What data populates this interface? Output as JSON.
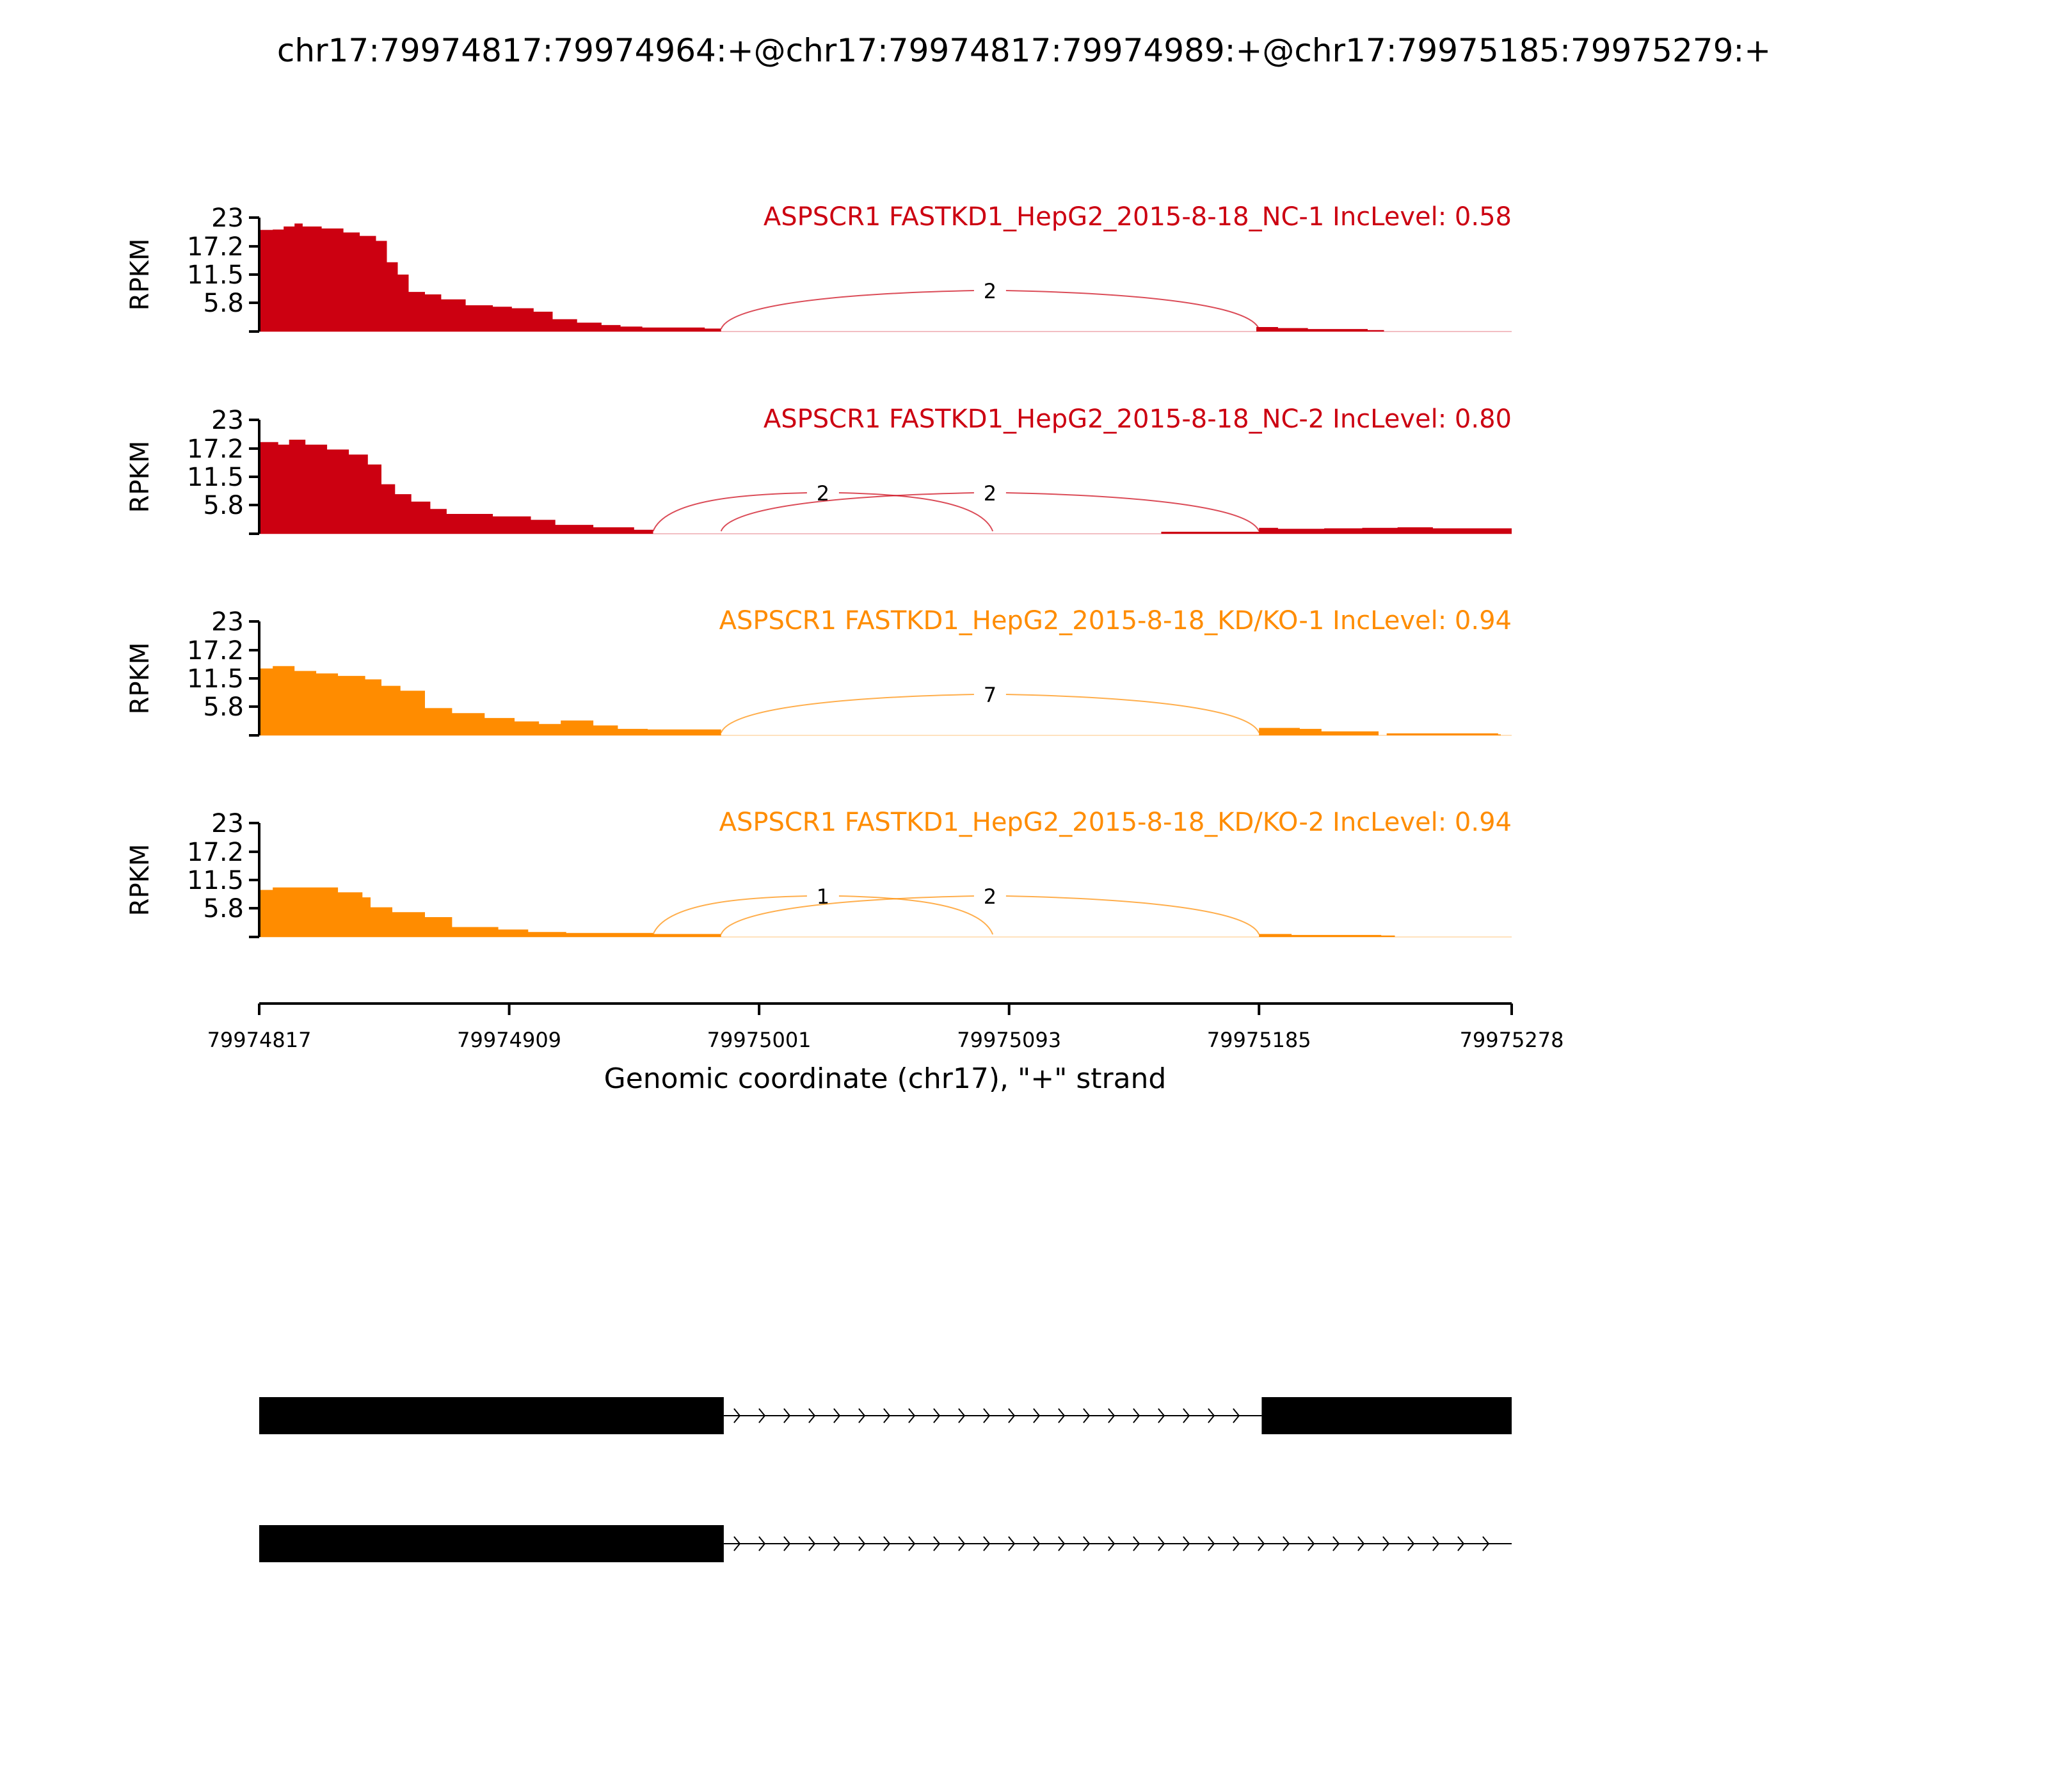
{
  "figure": {
    "title": "chr17:79974817:79974964:+@chr17:79974817:79974989:+@chr17:79975185:79975279:+",
    "xlabel": "Genomic coordinate (chr17), \"+\" strand",
    "x_ticks": [
      "79974817",
      "79974909",
      "79975001",
      "79975093",
      "79975185",
      "79975278"
    ]
  },
  "chart_data": {
    "type": "area",
    "title": "chr17:79974817:79974964:+@chr17:79974817:79974989:+@chr17:79975185:79975279:+",
    "xlabel": "Genomic coordinate (chr17), \"+\" strand",
    "ylabel": "RPKM",
    "xlim": [
      79974817,
      79975278
    ],
    "ylim": [
      0,
      23
    ],
    "y_ticks": [
      "23",
      "17.2",
      "11.5",
      "5.8"
    ],
    "grid": false,
    "series": [
      {
        "name": "ASPSCR1 FASTKD1_HepG2_2015-8-18_NC-1 IncLevel: 0.58",
        "color": "#cc0011",
        "coverage": [
          [
            79974817,
            20.5
          ],
          [
            79974822,
            20.6
          ],
          [
            79974826,
            21.2
          ],
          [
            79974830,
            21.8
          ],
          [
            79974833,
            21.2
          ],
          [
            79974840,
            20.8
          ],
          [
            79974848,
            20.0
          ],
          [
            79974854,
            19.3
          ],
          [
            79974860,
            18.3
          ],
          [
            79974864,
            14.0
          ],
          [
            79974868,
            11.5
          ],
          [
            79974872,
            8.0
          ],
          [
            79974878,
            7.5
          ],
          [
            79974884,
            6.5
          ],
          [
            79974893,
            5.3
          ],
          [
            79974903,
            5.0
          ],
          [
            79974910,
            4.7
          ],
          [
            79974918,
            4.0
          ],
          [
            79974925,
            2.5
          ],
          [
            79974934,
            1.8
          ],
          [
            79974943,
            1.3
          ],
          [
            79974950,
            1.0
          ],
          [
            79974958,
            0.8
          ],
          [
            79974981,
            0.6
          ],
          [
            79974987,
            0
          ],
          [
            79975184,
            0.9
          ],
          [
            79975192,
            0.7
          ],
          [
            79975203,
            0.5
          ],
          [
            79975225,
            0.3
          ],
          [
            79975231,
            0
          ],
          [
            79975278,
            0
          ]
        ],
        "junctions": [
          {
            "from": 79974987,
            "to": 79975185,
            "count": "2"
          }
        ]
      },
      {
        "name": "ASPSCR1 FASTKD1_HepG2_2015-8-18_NC-2 IncLevel: 0.80",
        "color": "#cc0011",
        "coverage": [
          [
            79974817,
            18.5
          ],
          [
            79974824,
            18.0
          ],
          [
            79974828,
            19.0
          ],
          [
            79974834,
            18.0
          ],
          [
            79974842,
            17.0
          ],
          [
            79974850,
            16.0
          ],
          [
            79974857,
            14.0
          ],
          [
            79974862,
            10.0
          ],
          [
            79974867,
            8.0
          ],
          [
            79974873,
            6.5
          ],
          [
            79974880,
            5.0
          ],
          [
            79974886,
            4.0
          ],
          [
            79974903,
            3.5
          ],
          [
            79974917,
            2.8
          ],
          [
            79974926,
            1.8
          ],
          [
            79974940,
            1.3
          ],
          [
            79974955,
            0.8
          ],
          [
            79974962,
            0
          ],
          [
            79975149,
            0.4
          ],
          [
            79975185,
            1.2
          ],
          [
            79975192,
            1.0
          ],
          [
            79975209,
            1.1
          ],
          [
            79975223,
            1.2
          ],
          [
            79975236,
            1.3
          ],
          [
            79975249,
            1.1
          ],
          [
            79975278,
            1.1
          ]
        ],
        "junctions": [
          {
            "from": 79974962,
            "to": 79975087,
            "count": "2"
          },
          {
            "from": 79974987,
            "to": 79975185,
            "count": "2"
          }
        ]
      },
      {
        "name": "ASPSCR1 FASTKD1_HepG2_2015-8-18_KD/KO-1 IncLevel: 0.94",
        "color": "#ff8c00",
        "coverage": [
          [
            79974817,
            13.5
          ],
          [
            79974822,
            14.0
          ],
          [
            79974830,
            13.0
          ],
          [
            79974838,
            12.5
          ],
          [
            79974846,
            12.0
          ],
          [
            79974856,
            11.3
          ],
          [
            79974862,
            10.0
          ],
          [
            79974869,
            9.0
          ],
          [
            79974878,
            5.5
          ],
          [
            79974888,
            4.5
          ],
          [
            79974900,
            3.5
          ],
          [
            79974911,
            2.8
          ],
          [
            79974920,
            2.3
          ],
          [
            79974928,
            3.0
          ],
          [
            79974940,
            2.0
          ],
          [
            79974949,
            1.3
          ],
          [
            79974960,
            1.2
          ],
          [
            79974987,
            0
          ],
          [
            79975185,
            1.5
          ],
          [
            79975200,
            1.3
          ],
          [
            79975208,
            0.8
          ],
          [
            79975229,
            0
          ],
          [
            79975232,
            0.4
          ],
          [
            79975273,
            0.2
          ],
          [
            79975274,
            0
          ],
          [
            79975278,
            0
          ]
        ],
        "junctions": [
          {
            "from": 79974987,
            "to": 79975185,
            "count": "7"
          }
        ]
      },
      {
        "name": "ASPSCR1 FASTKD1_HepG2_2015-8-18_KD/KO-2 IncLevel: 0.94",
        "color": "#ff8c00",
        "coverage": [
          [
            79974817,
            9.5
          ],
          [
            79974822,
            10.0
          ],
          [
            79974846,
            9.0
          ],
          [
            79974855,
            8.0
          ],
          [
            79974858,
            6.0
          ],
          [
            79974866,
            5.0
          ],
          [
            79974878,
            4.0
          ],
          [
            79974888,
            2.0
          ],
          [
            79974905,
            1.5
          ],
          [
            79974916,
            1.0
          ],
          [
            79974930,
            0.8
          ],
          [
            79974962,
            0.6
          ],
          [
            79974987,
            0
          ],
          [
            79975185,
            0.6
          ],
          [
            79975197,
            0.4
          ],
          [
            79975230,
            0.3
          ],
          [
            79975235,
            0
          ],
          [
            79975278,
            0
          ]
        ],
        "junctions": [
          {
            "from": 79974962,
            "to": 79975087,
            "count": "1"
          },
          {
            "from": 79974987,
            "to": 79975185,
            "count": "2"
          }
        ]
      }
    ],
    "isoforms": [
      {
        "exons": [
          [
            79974817,
            79974988
          ],
          [
            79975186,
            79975278
          ]
        ],
        "intron": [
          79974988,
          79975186
        ]
      },
      {
        "exons": [
          [
            79974817,
            79974988
          ]
        ],
        "intron": [
          79974988,
          79975278
        ]
      }
    ]
  }
}
